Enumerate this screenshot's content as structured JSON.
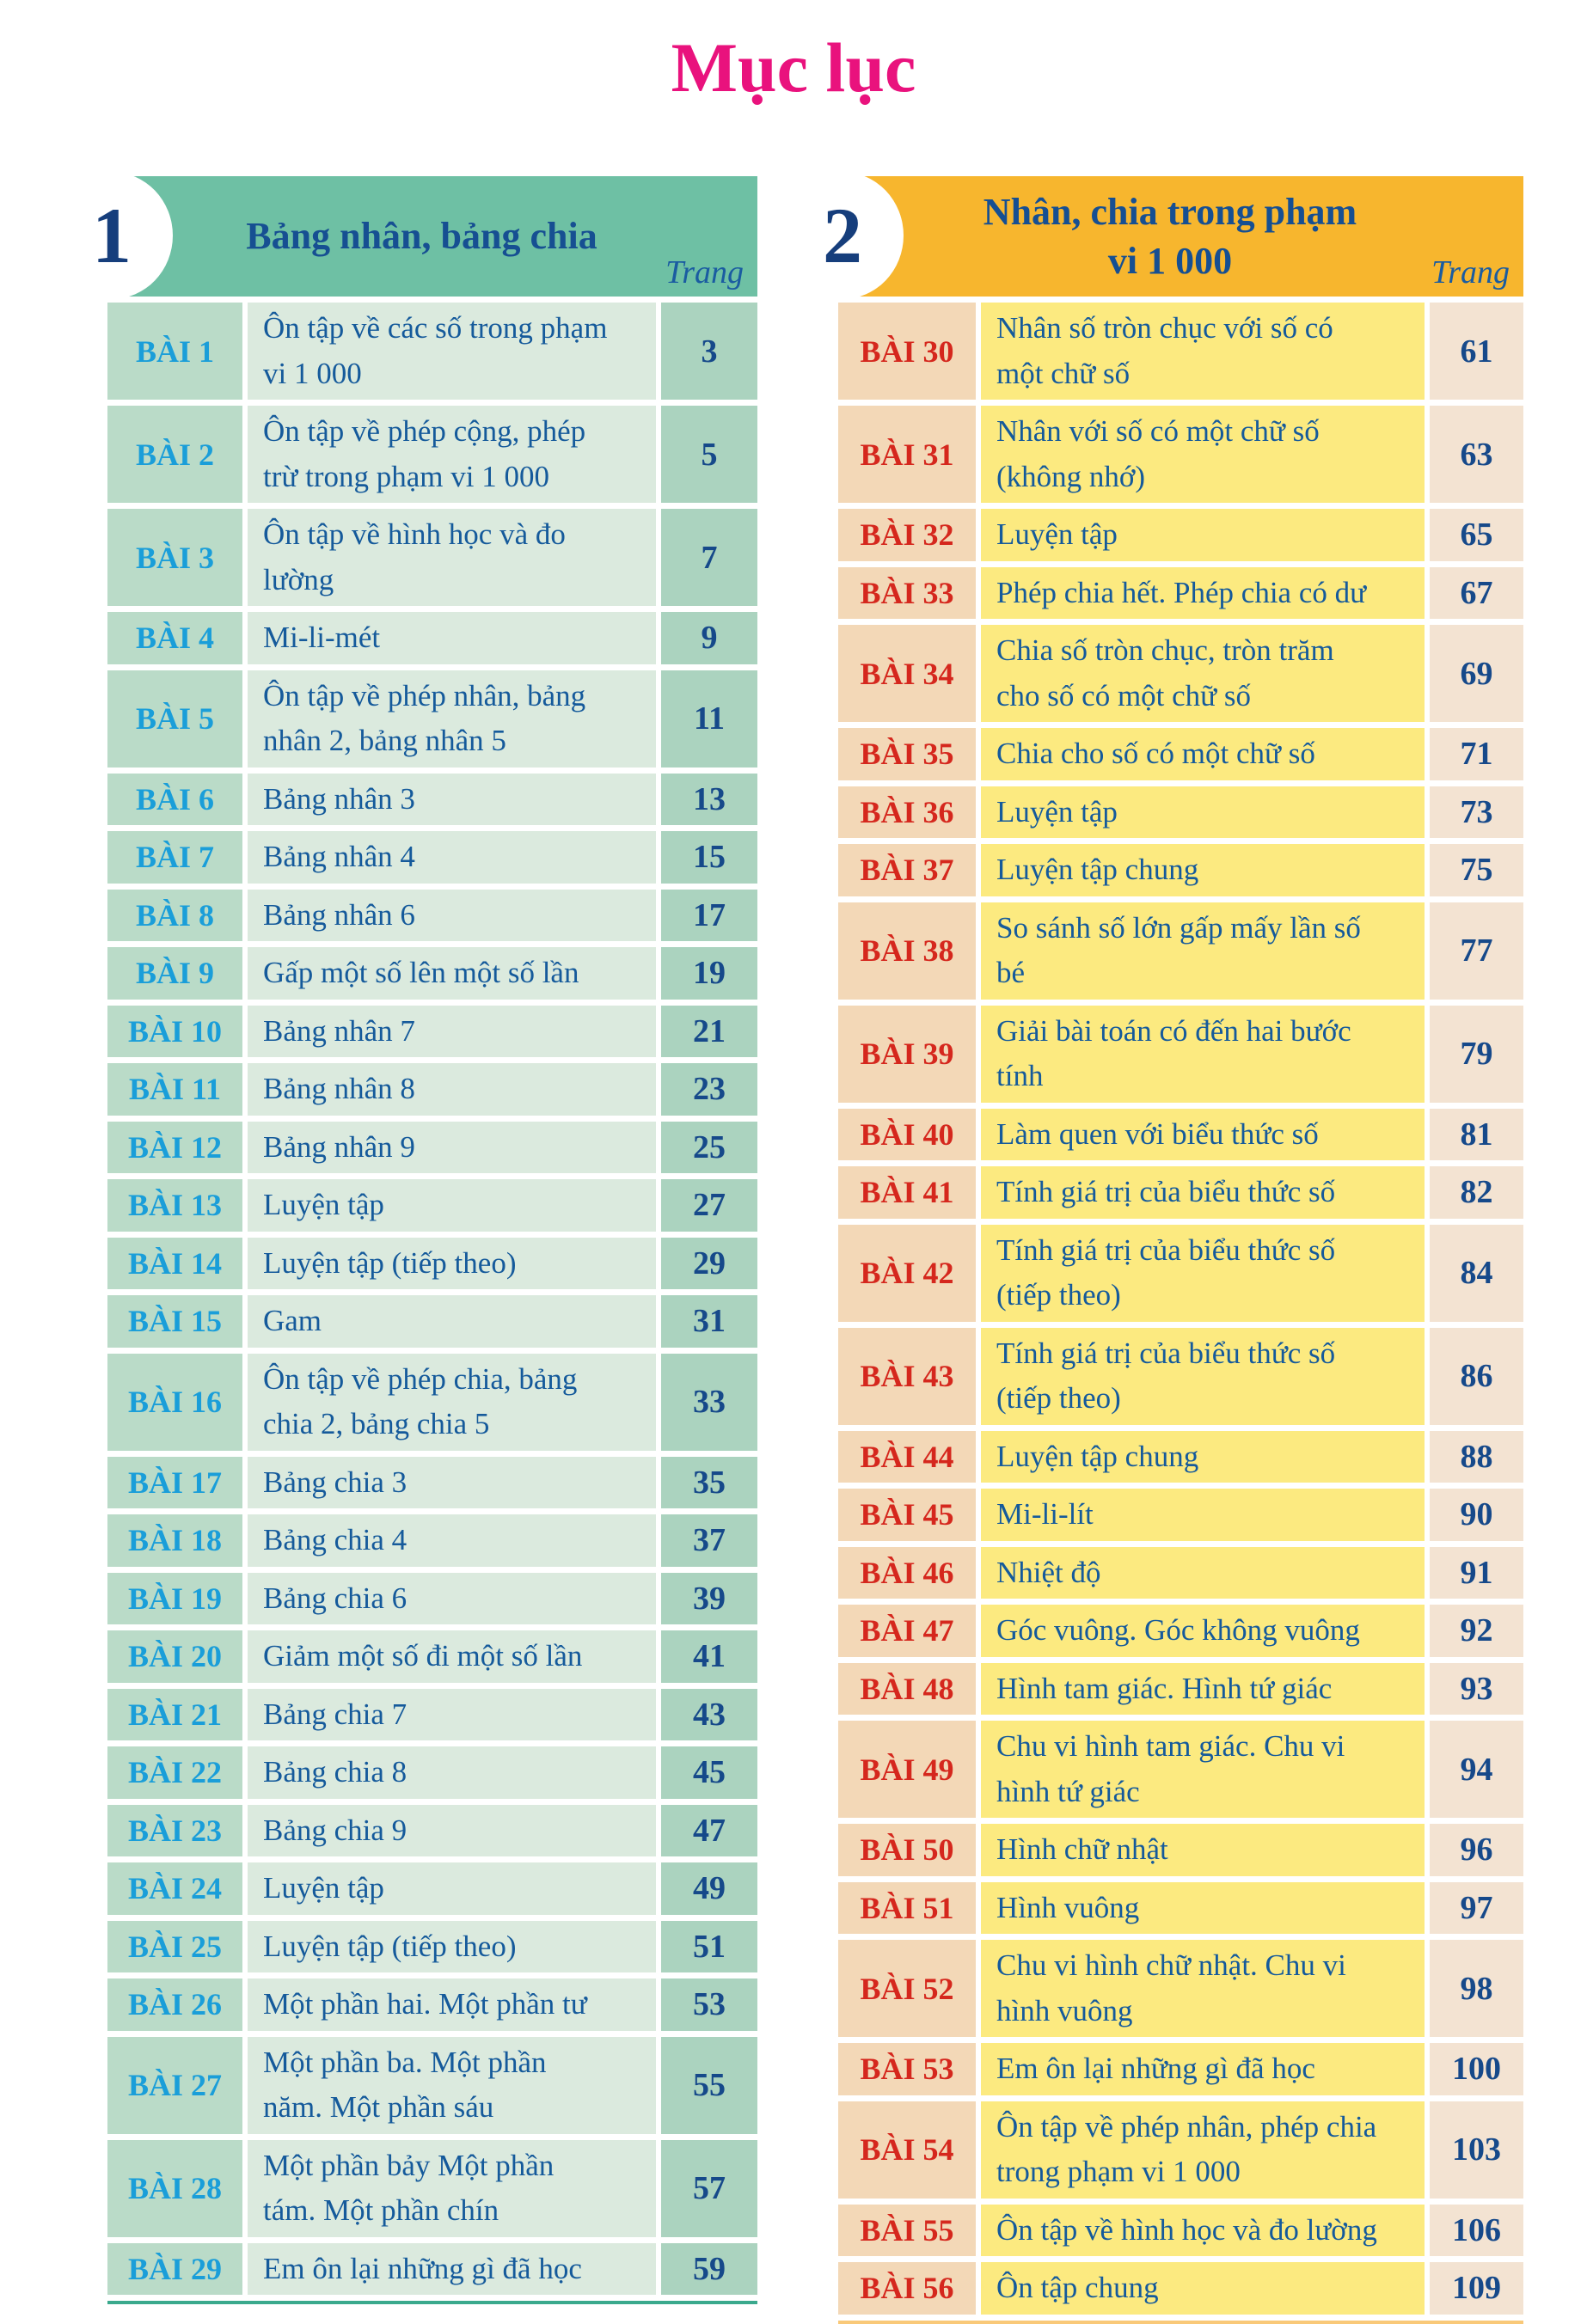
{
  "page_title": "Mục lục",
  "accent_title_color": "#e9127d",
  "columns": [
    {
      "chapter_number": "1",
      "chapter_title": "Bảng nhân, bảng chia",
      "page_column_header": "Trang",
      "colors": {
        "header_bg": "#6ec0a4",
        "label_bg": "#badbc8",
        "title_bg": "#dbeade",
        "page_bg": "#abd3bf",
        "label_color": "#1a9ed9",
        "bar_color": "#3aa98d"
      },
      "rows": [
        {
          "label": "BÀI 1",
          "title": "Ôn tập về các số trong phạm\nvi 1 000",
          "page": "3"
        },
        {
          "label": "BÀI 2",
          "title": "Ôn tập về phép cộng, phép\ntrừ trong phạm vi 1 000",
          "page": "5"
        },
        {
          "label": "BÀI 3",
          "title": "Ôn tập về hình học và đo\nlường",
          "page": "7"
        },
        {
          "label": "BÀI 4",
          "title": "Mi-li-mét",
          "page": "9"
        },
        {
          "label": "BÀI 5",
          "title": "Ôn tập về phép nhân, bảng\nnhân 2, bảng nhân 5",
          "page": "11"
        },
        {
          "label": "BÀI 6",
          "title": "Bảng nhân 3",
          "page": "13"
        },
        {
          "label": "BÀI 7",
          "title": "Bảng nhân 4",
          "page": "15"
        },
        {
          "label": "BÀI 8",
          "title": "Bảng nhân 6",
          "page": "17"
        },
        {
          "label": "BÀI 9",
          "title": "Gấp một số lên một số lần",
          "page": "19"
        },
        {
          "label": "BÀI 10",
          "title": "Bảng nhân 7",
          "page": "21"
        },
        {
          "label": "BÀI 11",
          "title": "Bảng nhân 8",
          "page": "23"
        },
        {
          "label": "BÀI 12",
          "title": "Bảng nhân 9",
          "page": "25"
        },
        {
          "label": "BÀI 13",
          "title": "Luyện tập",
          "page": "27"
        },
        {
          "label": "BÀI 14",
          "title": "Luyện tập (tiếp theo)",
          "page": "29"
        },
        {
          "label": "BÀI 15",
          "title": "Gam",
          "page": "31"
        },
        {
          "label": "BÀI 16",
          "title": "Ôn tập về phép chia, bảng\nchia 2, bảng chia 5",
          "page": "33"
        },
        {
          "label": "BÀI 17",
          "title": "Bảng chia 3",
          "page": "35"
        },
        {
          "label": "BÀI 18",
          "title": "Bảng chia 4",
          "page": "37"
        },
        {
          "label": "BÀI 19",
          "title": "Bảng chia 6",
          "page": "39"
        },
        {
          "label": "BÀI 20",
          "title": "Giảm một số đi một số lần",
          "page": "41"
        },
        {
          "label": "BÀI 21",
          "title": "Bảng chia 7",
          "page": "43"
        },
        {
          "label": "BÀI 22",
          "title": "Bảng chia 8",
          "page": "45"
        },
        {
          "label": "BÀI 23",
          "title": "Bảng chia 9",
          "page": "47"
        },
        {
          "label": "BÀI 24",
          "title": "Luyện tập",
          "page": "49"
        },
        {
          "label": "BÀI 25",
          "title": "Luyện tập (tiếp theo)",
          "page": "51"
        },
        {
          "label": "BÀI 26",
          "title": "Một phần hai. Một phần tư",
          "page": "53"
        },
        {
          "label": "BÀI 27",
          "title": "Một phần ba. Một phần\nnăm. Một phần sáu",
          "page": "55"
        },
        {
          "label": "BÀI 28",
          "title": "Một phần bảy Một phần\ntám. Một phần chín",
          "page": "57"
        },
        {
          "label": "BÀI 29",
          "title": "Em ôn lại những gì đã học",
          "page": "59"
        }
      ]
    },
    {
      "chapter_number": "2",
      "chapter_title": "Nhân, chia trong phạm\nvi 1 000",
      "page_column_header": "Trang",
      "colors": {
        "header_bg": "#f7b62e",
        "label_bg": "#f3d8b7",
        "title_bg": "#fcea80",
        "page_bg": "#f3e3d2",
        "label_color": "#d5271d",
        "bar_color": "#f9c979"
      },
      "rows": [
        {
          "label": "BÀI 30",
          "title": "Nhân số tròn chục với số có\nmột chữ số",
          "page": "61"
        },
        {
          "label": "BÀI 31",
          "title": "Nhân với số có một chữ số\n(không nhớ)",
          "page": "63"
        },
        {
          "label": "BÀI 32",
          "title": "Luyện tập",
          "page": "65"
        },
        {
          "label": "BÀI 33",
          "title": "Phép chia hết. Phép chia có dư",
          "page": "67"
        },
        {
          "label": "BÀI 34",
          "title": "Chia số tròn chục, tròn trăm\ncho số có một chữ số",
          "page": "69"
        },
        {
          "label": "BÀI 35",
          "title": "Chia cho số có một chữ số",
          "page": "71"
        },
        {
          "label": "BÀI 36",
          "title": "Luyện tập",
          "page": "73"
        },
        {
          "label": "BÀI 37",
          "title": "Luyện tập chung",
          "page": "75"
        },
        {
          "label": "BÀI 38",
          "title": "So sánh số lớn gấp mấy lần số\nbé",
          "page": "77"
        },
        {
          "label": "BÀI 39",
          "title": "Giải bài toán có đến hai bước\ntính",
          "page": "79"
        },
        {
          "label": "BÀI 40",
          "title": "Làm quen với biểu thức số",
          "page": "81"
        },
        {
          "label": "BÀI 41",
          "title": "Tính giá trị của biểu thức số",
          "page": "82"
        },
        {
          "label": "BÀI 42",
          "title": "Tính giá trị của biểu thức số\n(tiếp theo)",
          "page": "84"
        },
        {
          "label": "BÀI 43",
          "title": "Tính giá trị của biểu thức số\n(tiếp theo)",
          "page": "86"
        },
        {
          "label": "BÀI 44",
          "title": "Luyện tập chung",
          "page": "88"
        },
        {
          "label": "BÀI 45",
          "title": "Mi-li-lít",
          "page": "90"
        },
        {
          "label": "BÀI 46",
          "title": "Nhiệt độ",
          "page": "91"
        },
        {
          "label": "BÀI 47",
          "title": "Góc vuông. Góc không vuông",
          "page": "92"
        },
        {
          "label": "BÀI 48",
          "title": "Hình tam giác. Hình tứ giác",
          "page": "93"
        },
        {
          "label": "BÀI 49",
          "title": "Chu vi hình tam giác. Chu vi\nhình tứ giác",
          "page": "94"
        },
        {
          "label": "BÀI 50",
          "title": "Hình chữ nhật",
          "page": "96"
        },
        {
          "label": "BÀI 51",
          "title": "Hình vuông",
          "page": "97"
        },
        {
          "label": "BÀI 52",
          "title": "Chu vi hình chữ nhật. Chu vi\nhình vuông",
          "page": "98"
        },
        {
          "label": "BÀI 53",
          "title": "Em ôn lại những gì đã học",
          "page": "100"
        },
        {
          "label": "BÀI 54",
          "title": "Ôn tập về phép nhân, phép chia\ntrong phạm vi 1 000",
          "page": "103"
        },
        {
          "label": "BÀI 55",
          "title": "Ôn tập về hình học và đo lường",
          "page": "106"
        },
        {
          "label": "BÀI 56",
          "title": "Ôn tập chung",
          "page": "109"
        }
      ]
    }
  ]
}
